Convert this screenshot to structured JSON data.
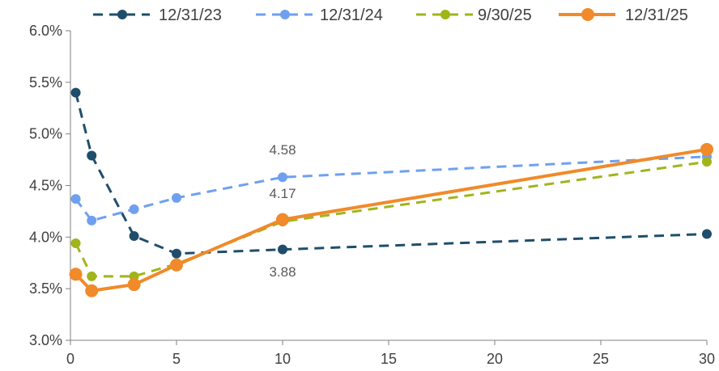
{
  "chart_data": {
    "type": "line",
    "title": "",
    "xlabel": "",
    "ylabel": "",
    "xlim": [
      0,
      30
    ],
    "ylim": [
      3.0,
      6.0
    ],
    "x_ticks": [
      0,
      5,
      10,
      15,
      20,
      25,
      30
    ],
    "y_ticks": [
      3.0,
      3.5,
      4.0,
      4.5,
      5.0,
      5.5,
      6.0
    ],
    "x_tick_labels": [
      "0",
      "5",
      "10",
      "15",
      "20",
      "25",
      "30"
    ],
    "y_tick_labels": [
      "3.0%",
      "3.5%",
      "4.0%",
      "4.5%",
      "5.0%",
      "5.5%",
      "6.0%"
    ],
    "grid": false,
    "legend_position": "top",
    "series": [
      {
        "name": "12/31/23",
        "color": "#1f4e6b",
        "dashed": true,
        "x": [
          0.25,
          1,
          3,
          5,
          10,
          30
        ],
        "values": [
          5.4,
          4.79,
          4.01,
          3.84,
          3.88,
          4.03
        ]
      },
      {
        "name": "12/31/24",
        "color": "#6fa0f0",
        "dashed": true,
        "x": [
          0.25,
          1,
          3,
          5,
          10,
          30
        ],
        "values": [
          4.37,
          4.16,
          4.27,
          4.38,
          4.58,
          4.78
        ]
      },
      {
        "name": "9/30/25",
        "color": "#a0b51a",
        "dashed": true,
        "x": [
          0.25,
          1,
          3,
          5,
          10,
          30
        ],
        "values": [
          3.94,
          3.62,
          3.62,
          3.74,
          4.15,
          4.73
        ]
      },
      {
        "name": "12/31/25",
        "color": "#f08a2a",
        "dashed": false,
        "x": [
          0.25,
          1,
          3,
          5,
          10,
          30
        ],
        "values": [
          3.64,
          3.48,
          3.54,
          3.73,
          4.17,
          4.85
        ]
      }
    ],
    "annotations": [
      {
        "text": "4.58",
        "x": 10,
        "y": 4.8
      },
      {
        "text": "4.17",
        "x": 10,
        "y": 4.38
      },
      {
        "text": "3.88",
        "x": 10,
        "y": 3.62
      }
    ]
  }
}
